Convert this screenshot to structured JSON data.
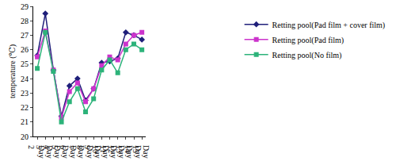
{
  "chart_data": {
    "type": "line",
    "y_label": "temperature (℃)",
    "categories": [
      "Day 2",
      "Day 3",
      "Day 4",
      "Day 5",
      "Day 6",
      "Day 7",
      "Day 8",
      "Day 9",
      "Day 10",
      "Day 11",
      "Day 12",
      "Day 13",
      "Day 14",
      "Day 15"
    ],
    "series": [
      {
        "name": "Retting pool(Pad film + cover film)",
        "color": "#1f1f7a",
        "marker": "diamond",
        "values": [
          25.6,
          28.5,
          24.6,
          21.4,
          23.5,
          24.0,
          22.5,
          23.3,
          25.1,
          25.2,
          25.4,
          27.2,
          27.0,
          26.7
        ]
      },
      {
        "name": "Retting pool(Pad film)",
        "color": "#cc33cc",
        "marker": "square",
        "values": [
          25.5,
          27.3,
          24.6,
          21.3,
          23.1,
          23.7,
          22.4,
          23.3,
          24.9,
          25.5,
          25.3,
          26.4,
          27.0,
          27.2
        ]
      },
      {
        "name": "Retting pool(No film)",
        "color": "#2db37a",
        "marker": "square",
        "values": [
          24.7,
          27.2,
          24.5,
          21.0,
          22.4,
          23.3,
          21.7,
          22.6,
          24.6,
          25.3,
          24.4,
          26.0,
          26.4,
          26.0
        ]
      }
    ],
    "ylim": [
      20,
      29
    ],
    "yticks": [
      20,
      21,
      22,
      23,
      24,
      25,
      26,
      27,
      28,
      29
    ],
    "grid": false,
    "legend": "right"
  }
}
